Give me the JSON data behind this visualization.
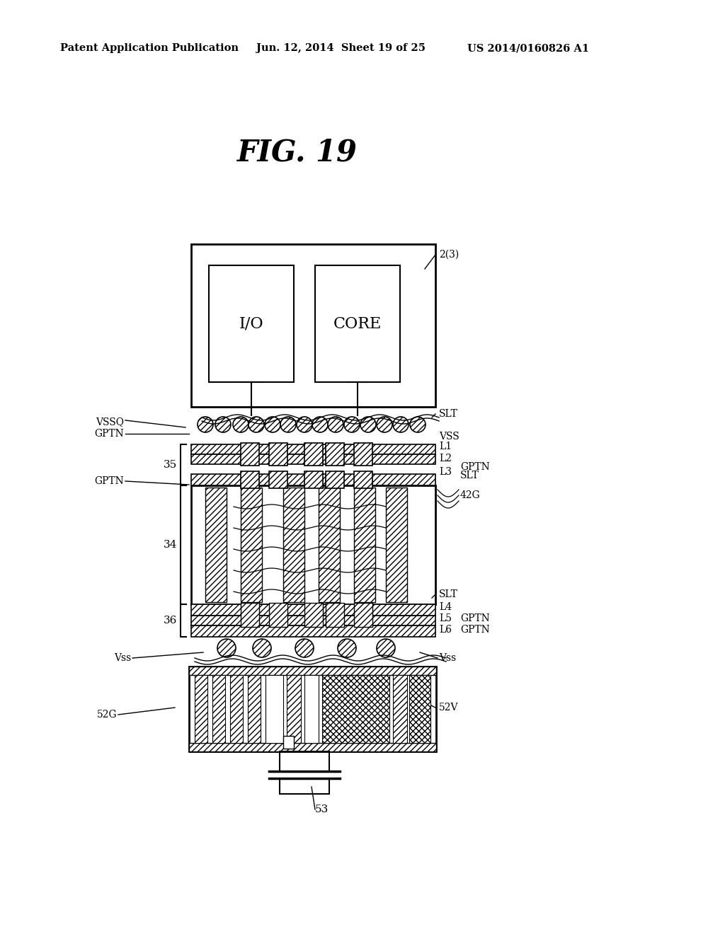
{
  "header_left": "Patent Application Publication",
  "header_center": "Jun. 12, 2014  Sheet 19 of 25",
  "header_right": "US 2014/0160826 A1",
  "bg_color": "#ffffff",
  "line_color": "#000000",
  "labels": {
    "fig_title": "FIG. 19",
    "chip_label": "2(3)",
    "io_label": "I/O",
    "core_label": "CORE",
    "slt_top": "SLT",
    "vss_top": "VSS",
    "vssq": "VSSQ",
    "gptn_top": "GPTN",
    "l1": "L1",
    "l2": "L2",
    "l3": "L3",
    "l4": "L4",
    "l5": "L5",
    "l6": "L6",
    "gptn_l3": "GPTN",
    "slt_l3": "SLT",
    "label_42g": "42G",
    "slt_l4": "SLT",
    "gptn_l5": "GPTN",
    "gptn_l6": "GPTN",
    "gptn_left": "GPTN",
    "n35": "35",
    "n34": "34",
    "n36": "36",
    "vss_left": "Vss",
    "vss_right": "Vss",
    "label_52v": "52V",
    "label_52g": "52G",
    "label_53": "53"
  }
}
